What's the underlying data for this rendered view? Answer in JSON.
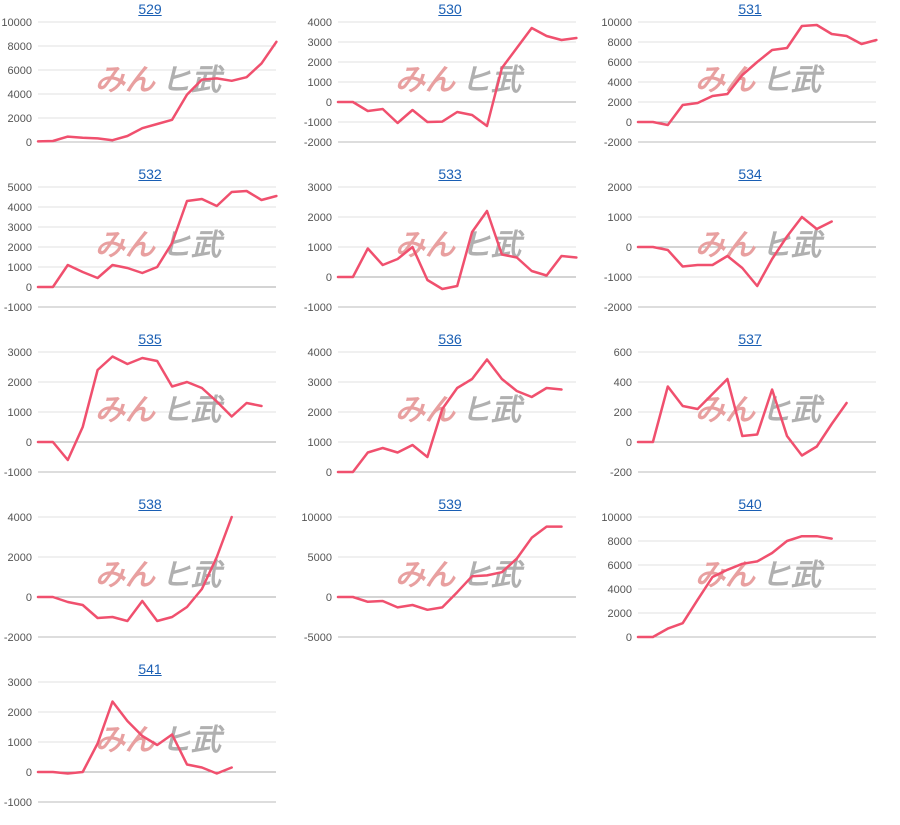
{
  "line_color": "#f0506e",
  "watermark": {
    "part1": "みん",
    "part2": "ヒ武",
    "color1": "#e8a0a0",
    "color2": "#b0b0b0"
  },
  "chart_data": [
    {
      "type": "line",
      "title": "529",
      "yticks": [
        0,
        2000,
        4000,
        6000,
        8000,
        10000
      ],
      "ylim": [
        0,
        10000
      ],
      "values": [
        50,
        80,
        450,
        350,
        300,
        150,
        500,
        1150,
        1500,
        1850,
        3950,
        5200,
        5300,
        5100,
        5400,
        6550,
        8350
      ]
    },
    {
      "type": "line",
      "title": "530",
      "yticks": [
        -2000,
        -1000,
        0,
        1000,
        2000,
        3000,
        4000
      ],
      "ylim": [
        -2000,
        4000
      ],
      "values": [
        0,
        0,
        -450,
        -350,
        -1050,
        -400,
        -1000,
        -980,
        -500,
        -650,
        -1200,
        1700,
        2700,
        3700,
        3300,
        3100,
        3200
      ]
    },
    {
      "type": "line",
      "title": "531",
      "yticks": [
        -2000,
        0,
        2000,
        4000,
        6000,
        8000,
        10000
      ],
      "ylim": [
        -2000,
        10000
      ],
      "values": [
        0,
        0,
        -300,
        1700,
        1900,
        2600,
        2800,
        4700,
        6000,
        7200,
        7400,
        9600,
        9700,
        8800,
        8600,
        7800,
        8200
      ]
    },
    {
      "type": "line",
      "title": "532",
      "yticks": [
        -1000,
        0,
        1000,
        2000,
        3000,
        4000,
        5000
      ],
      "ylim": [
        -1000,
        5000
      ],
      "values": [
        0,
        0,
        1100,
        750,
        450,
        1100,
        950,
        700,
        1000,
        2200,
        4300,
        4400,
        4050,
        4750,
        4800,
        4350,
        4550
      ]
    },
    {
      "type": "line",
      "title": "533",
      "yticks": [
        -1000,
        0,
        1000,
        2000,
        3000
      ],
      "ylim": [
        -1000,
        3000
      ],
      "values": [
        0,
        0,
        950,
        400,
        600,
        1000,
        -100,
        -400,
        -300,
        1500,
        2200,
        750,
        650,
        200,
        50,
        700,
        650
      ]
    },
    {
      "type": "line",
      "title": "534",
      "yticks": [
        -2000,
        -1000,
        0,
        1000,
        2000
      ],
      "ylim": [
        -2000,
        2000
      ],
      "values": [
        0,
        0,
        -100,
        -650,
        -600,
        -600,
        -300,
        -700,
        -1300,
        -400,
        350,
        1000,
        600,
        850
      ]
    },
    {
      "type": "line",
      "title": "535",
      "yticks": [
        -1000,
        0,
        1000,
        2000,
        3000
      ],
      "ylim": [
        -1000,
        3000
      ],
      "values": [
        0,
        0,
        -600,
        500,
        2400,
        2850,
        2600,
        2800,
        2700,
        1850,
        2000,
        1800,
        1350,
        850,
        1300,
        1200
      ]
    },
    {
      "type": "line",
      "title": "536",
      "yticks": [
        0,
        1000,
        2000,
        3000,
        4000
      ],
      "ylim": [
        0,
        4000
      ],
      "values": [
        0,
        0,
        650,
        800,
        650,
        900,
        500,
        2100,
        2800,
        3100,
        3750,
        3100,
        2700,
        2500,
        2800,
        2750
      ]
    },
    {
      "type": "line",
      "title": "537",
      "yticks": [
        -200,
        0,
        200,
        400,
        600
      ],
      "ylim": [
        -200,
        600
      ],
      "values": [
        0,
        0,
        370,
        240,
        220,
        320,
        420,
        40,
        50,
        350,
        40,
        -90,
        -30,
        120,
        260
      ]
    },
    {
      "type": "line",
      "title": "538",
      "yticks": [
        -2000,
        0,
        2000,
        4000
      ],
      "ylim": [
        -2000,
        4000
      ],
      "values": [
        0,
        0,
        -250,
        -400,
        -1050,
        -1000,
        -1200,
        -200,
        -1200,
        -1000,
        -500,
        400,
        2000,
        4000
      ]
    },
    {
      "type": "line",
      "title": "539",
      "yticks": [
        -5000,
        0,
        5000,
        10000
      ],
      "ylim": [
        -5000,
        10000
      ],
      "values": [
        0,
        0,
        -600,
        -500,
        -1300,
        -1000,
        -1600,
        -1300,
        600,
        2600,
        2700,
        3100,
        4800,
        7400,
        8800,
        8800
      ]
    },
    {
      "type": "line",
      "title": "540",
      "yticks": [
        0,
        2000,
        4000,
        6000,
        8000,
        10000
      ],
      "ylim": [
        0,
        10000
      ],
      "values": [
        0,
        0,
        700,
        1150,
        3100,
        5000,
        5600,
        6100,
        6300,
        7000,
        8000,
        8400,
        8400,
        8200
      ]
    },
    {
      "type": "line",
      "title": "541",
      "yticks": [
        -1000,
        0,
        1000,
        2000,
        3000
      ],
      "ylim": [
        -1000,
        3000
      ],
      "values": [
        0,
        0,
        -50,
        0,
        950,
        2350,
        1700,
        1200,
        900,
        1250,
        250,
        150,
        -50,
        150
      ]
    }
  ]
}
